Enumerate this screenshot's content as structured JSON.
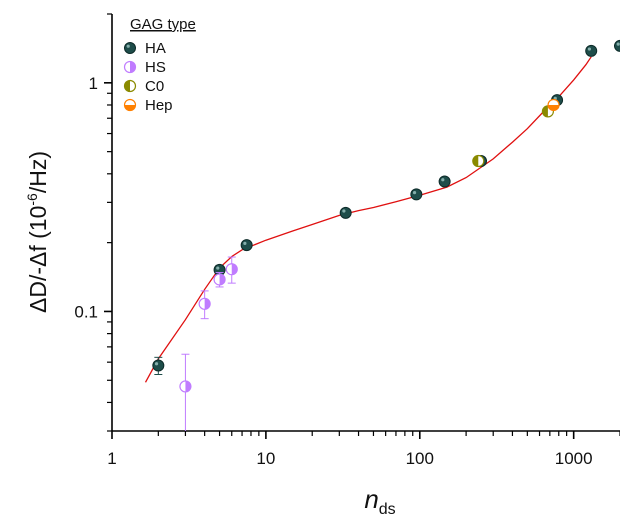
{
  "chart_data": {
    "type": "scatter",
    "x_scale": "log",
    "y_scale": "log",
    "xlim": [
      1,
      2000
    ],
    "ylim": [
      0.03,
      2
    ],
    "x_ticks": [
      {
        "value": 1,
        "label": "1"
      },
      {
        "value": 10,
        "label": "10"
      },
      {
        "value": 100,
        "label": "100"
      },
      {
        "value": 1000,
        "label": "1000"
      }
    ],
    "y_ticks": [
      {
        "value": 0.1,
        "label": "0.1"
      },
      {
        "value": 1,
        "label": "1"
      }
    ],
    "xlabel": {
      "main": "n",
      "sub": "ds"
    },
    "ylabel": {
      "text": "ΔD/-Δf (10",
      "sup": "-6",
      "tail": "/Hz)"
    },
    "legend": {
      "title": "GAG type",
      "placement": "top-left"
    },
    "series": [
      {
        "name": "HA",
        "color": "#1e4d4a",
        "marker": "full",
        "points": [
          {
            "x": 2,
            "y": 0.058,
            "err": 0.005
          },
          {
            "x": 5,
            "y": 0.152,
            "err": 0.007
          },
          {
            "x": 7.5,
            "y": 0.195,
            "err": 0.005
          },
          {
            "x": 33,
            "y": 0.27,
            "err": 0.006
          },
          {
            "x": 95,
            "y": 0.325,
            "err": 0.007
          },
          {
            "x": 145,
            "y": 0.37,
            "err": 0.008
          },
          {
            "x": 250,
            "y": 0.455,
            "err": 0.01
          },
          {
            "x": 780,
            "y": 0.84,
            "err": 0.02
          },
          {
            "x": 1300,
            "y": 1.38,
            "err": 0.03
          },
          {
            "x": 2000,
            "y": 1.45,
            "err": 0.03
          }
        ]
      },
      {
        "name": "HS",
        "color": "#c07cff",
        "marker": "right-half",
        "points": [
          {
            "x": 3,
            "y": 0.047,
            "err": 0.018
          },
          {
            "x": 4,
            "y": 0.108,
            "err": 0.015
          },
          {
            "x": 5,
            "y": 0.138,
            "err": 0.01
          },
          {
            "x": 6,
            "y": 0.153,
            "err": 0.02
          }
        ]
      },
      {
        "name": "C0",
        "color": "#8a8a00",
        "marker": "left-half",
        "points": [
          {
            "x": 680,
            "y": 0.75,
            "err": 0.015
          },
          {
            "x": 240,
            "y": 0.455,
            "err": 0.01
          }
        ]
      },
      {
        "name": "Hep",
        "color": "#ff8000",
        "marker": "bottom-half",
        "points": [
          {
            "x": 740,
            "y": 0.8,
            "err": 0.02
          }
        ]
      }
    ],
    "fit_curve": {
      "color": "#e01010",
      "points": [
        [
          1.65,
          0.049
        ],
        [
          2,
          0.062
        ],
        [
          3,
          0.092
        ],
        [
          4,
          0.125
        ],
        [
          5,
          0.155
        ],
        [
          6,
          0.174
        ],
        [
          7,
          0.186
        ],
        [
          8,
          0.193
        ],
        [
          10,
          0.205
        ],
        [
          15,
          0.225
        ],
        [
          20,
          0.24
        ],
        [
          30,
          0.263
        ],
        [
          40,
          0.276
        ],
        [
          50,
          0.285
        ],
        [
          70,
          0.302
        ],
        [
          100,
          0.322
        ],
        [
          150,
          0.35
        ],
        [
          200,
          0.385
        ],
        [
          300,
          0.465
        ],
        [
          400,
          0.55
        ],
        [
          500,
          0.63
        ],
        [
          700,
          0.8
        ],
        [
          800,
          0.87
        ],
        [
          1000,
          1.03
        ],
        [
          1200,
          1.2
        ],
        [
          1300,
          1.3
        ]
      ]
    }
  }
}
